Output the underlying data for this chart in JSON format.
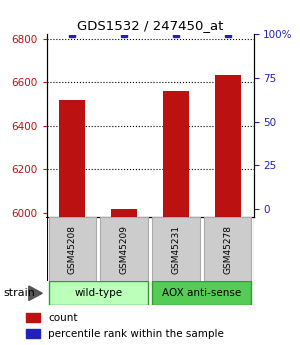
{
  "title": "GDS1532 / 247450_at",
  "samples": [
    "GSM45208",
    "GSM45209",
    "GSM45231",
    "GSM45278"
  ],
  "counts": [
    6520,
    6020,
    6560,
    6635
  ],
  "percentiles": [
    100,
    100,
    100,
    100
  ],
  "ylim_left": [
    5980,
    6820
  ],
  "ylim_right": [
    -4.76,
    100
  ],
  "yticks_left": [
    6000,
    6200,
    6400,
    6600,
    6800
  ],
  "yticks_right": [
    0,
    25,
    50,
    75,
    100
  ],
  "ytick_labels_right": [
    "0",
    "25",
    "50",
    "75",
    "100%"
  ],
  "bar_color": "#bb1111",
  "dot_color": "#2222bb",
  "groups": [
    {
      "label": "wild-type",
      "samples": [
        0,
        1
      ],
      "color": "#bbffbb"
    },
    {
      "label": "AOX anti-sense",
      "samples": [
        2,
        3
      ],
      "color": "#55cc55"
    }
  ],
  "strain_label": "strain",
  "legend_count_label": "count",
  "legend_pct_label": "percentile rank within the sample",
  "sample_box_color": "#cccccc",
  "bar_width": 0.5
}
